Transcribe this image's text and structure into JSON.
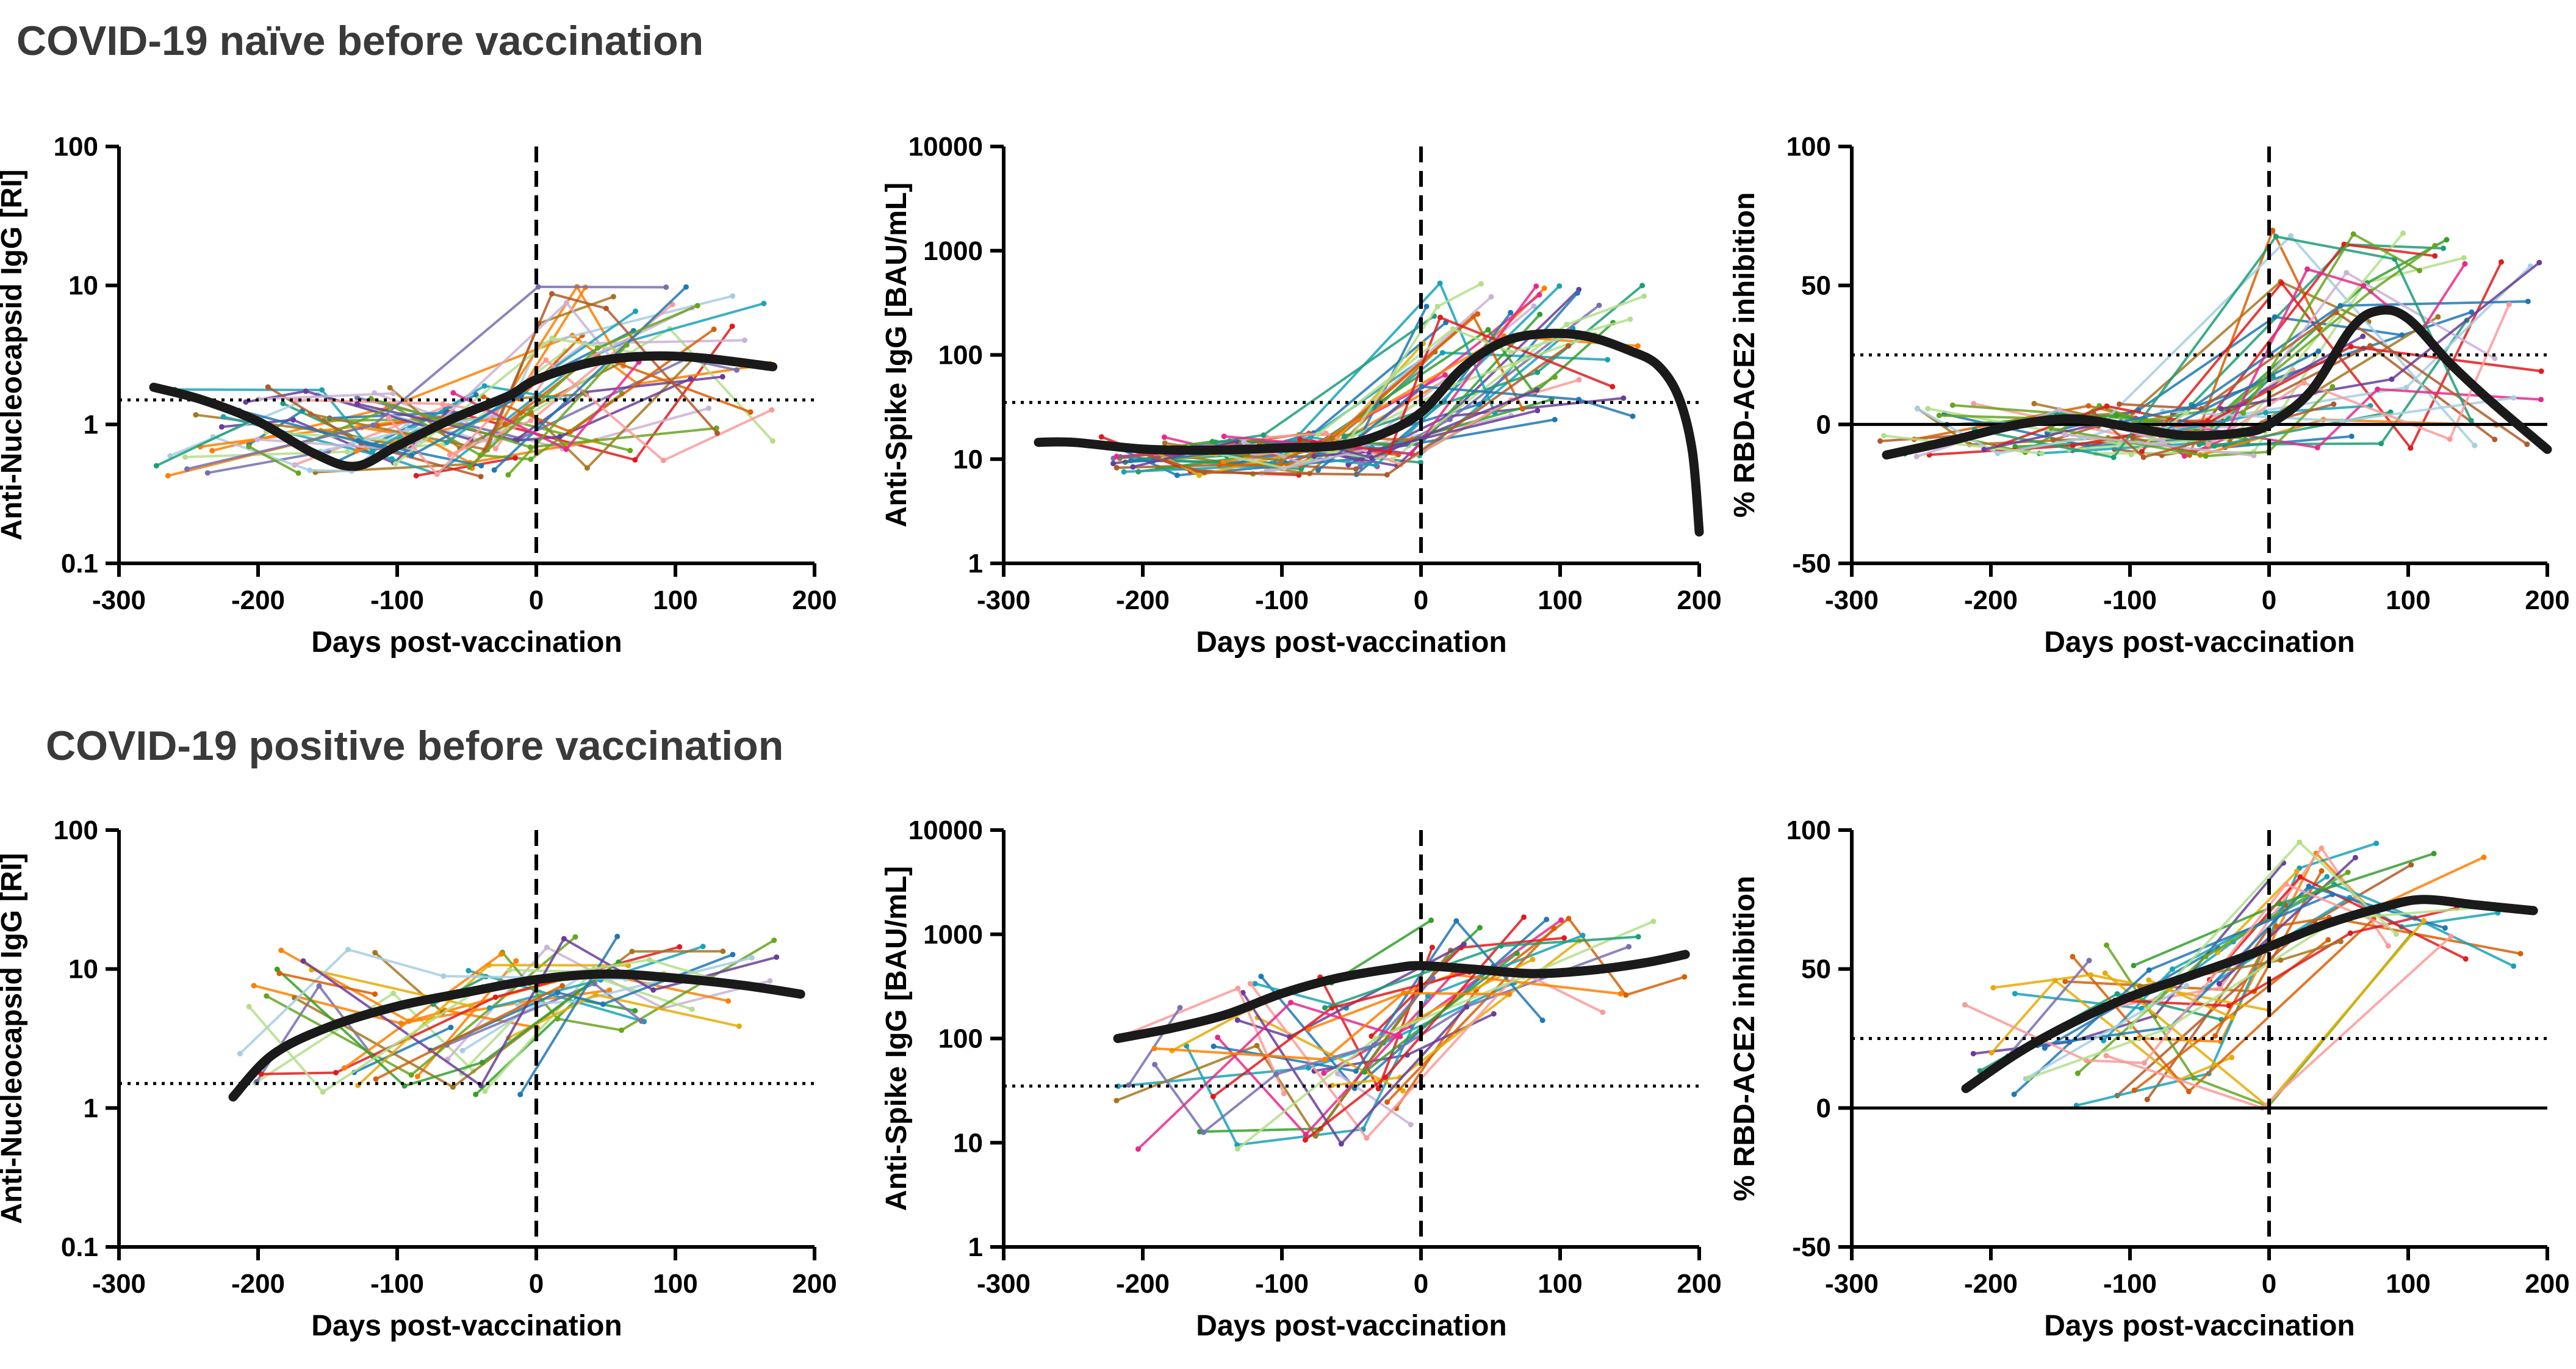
{
  "section_titles": {
    "top": "COVID-19 naïve before vaccination",
    "bottom": "COVID-19 positive before vaccination"
  },
  "colors": {
    "fit": "#1a1a1a",
    "participant_palette": [
      "#6a3d9a",
      "#1f78b4",
      "#33a02c",
      "#e31a1c",
      "#ff7f00",
      "#b15928",
      "#fb9a99",
      "#a6cee3",
      "#b2df8a",
      "#cab2d6",
      "#17a2b8",
      "#e7298a",
      "#66a61e",
      "#7570b3",
      "#d95f02",
      "#1b9e77",
      "#e6ab02",
      "#a6761d"
    ]
  },
  "chart_data": [
    {
      "id": "naive_nucleocapsid",
      "type": "line",
      "scale": "log",
      "ylabel": "Anti-Nucleocapsid IgG [RI]",
      "xlabel": "Days post-vaccination",
      "xlim": [
        -300,
        200
      ],
      "ylim": [
        0.1,
        100
      ],
      "xticks": [
        "-300",
        "-200",
        "-100",
        "0",
        "100",
        "200"
      ],
      "yticks": [
        {
          "v": 0.1,
          "label": "0.1"
        },
        {
          "v": 1,
          "label": "1"
        },
        {
          "v": 10,
          "label": "10"
        },
        {
          "v": 100,
          "label": "100"
        }
      ],
      "cutoff": 1.5,
      "baseline": null,
      "fit": [
        [
          -275,
          1.85
        ],
        [
          -240,
          1.5
        ],
        [
          -200,
          1.05
        ],
        [
          -160,
          0.62
        ],
        [
          -130,
          0.5
        ],
        [
          -100,
          0.7
        ],
        [
          -60,
          1.1
        ],
        [
          -20,
          1.6
        ],
        [
          0,
          2.1
        ],
        [
          40,
          2.8
        ],
        [
          80,
          3.1
        ],
        [
          120,
          3.0
        ],
        [
          170,
          2.6
        ]
      ],
      "series_seed": 11,
      "series_count": 60,
      "rand": {
        "pre_center": 0.9,
        "pre_spread": 0.55,
        "post_center": 2.2,
        "post_spread": 1.1,
        "xmin": -280,
        "xmax": 170,
        "cap_lo": 0.25,
        "cap_hi": 18
      }
    },
    {
      "id": "naive_spike",
      "type": "line",
      "scale": "log",
      "ylabel": "Anti-Spike IgG [BAU/mL]",
      "xlabel": "Days post-vaccination",
      "xlim": [
        -300,
        200
      ],
      "ylim": [
        1,
        10000
      ],
      "xticks": [
        "-300",
        "-200",
        "-100",
        "0",
        "100",
        "200"
      ],
      "yticks": [
        {
          "v": 1,
          "label": "1"
        },
        {
          "v": 10,
          "label": "10"
        },
        {
          "v": 100,
          "label": "100"
        },
        {
          "v": 1000,
          "label": "1000"
        },
        {
          "v": 10000,
          "label": "10000"
        }
      ],
      "cutoff": 35,
      "baseline": null,
      "fit": [
        [
          -275,
          14.5
        ],
        [
          -250,
          14.5
        ],
        [
          -200,
          12.5
        ],
        [
          -150,
          12.2
        ],
        [
          -100,
          12.8
        ],
        [
          -60,
          13.5
        ],
        [
          -30,
          17
        ],
        [
          0,
          28
        ],
        [
          30,
          75
        ],
        [
          60,
          135
        ],
        [
          90,
          160
        ],
        [
          120,
          150
        ],
        [
          150,
          110
        ],
        [
          170,
          80
        ],
        [
          185,
          40
        ],
        [
          195,
          12
        ],
        [
          200,
          2
        ]
      ],
      "series_seed": 23,
      "series_count": 60,
      "rand": {
        "pre_center": 11,
        "pre_spread": 0.35,
        "post_center": 120,
        "post_spread": 1.2,
        "xmin": -230,
        "xmax": 180,
        "cap_lo": 7,
        "cap_hi": 1000
      }
    },
    {
      "id": "naive_rbd",
      "type": "line",
      "scale": "linear",
      "ylabel": "% RBD-ACE2 inhibition",
      "xlabel": "Days post-vaccination",
      "xlim": [
        -300,
        200
      ],
      "ylim": [
        -50,
        100
      ],
      "xticks": [
        "-300",
        "-200",
        "-100",
        "0",
        "100",
        "200"
      ],
      "yticks": [
        {
          "v": -50,
          "label": "-50"
        },
        {
          "v": 0,
          "label": "0"
        },
        {
          "v": 50,
          "label": "50"
        },
        {
          "v": 100,
          "label": "100"
        }
      ],
      "cutoff": 25,
      "baseline": 0,
      "fit": [
        [
          -275,
          -11
        ],
        [
          -230,
          -6
        ],
        [
          -180,
          0
        ],
        [
          -140,
          2
        ],
        [
          -100,
          -1
        ],
        [
          -60,
          -4
        ],
        [
          -20,
          -3
        ],
        [
          0,
          0
        ],
        [
          30,
          12
        ],
        [
          60,
          35
        ],
        [
          80,
          41
        ],
        [
          100,
          38
        ],
        [
          130,
          22
        ],
        [
          160,
          8
        ],
        [
          200,
          -9
        ]
      ],
      "series_seed": 37,
      "series_count": 60,
      "rand": {
        "pre_center": -2,
        "pre_spread": 10,
        "post_center": 30,
        "post_spread": 40,
        "xmin": -280,
        "xmax": 200,
        "cap_lo": -20,
        "cap_hi": 98
      }
    },
    {
      "id": "positive_nucleocapsid",
      "type": "line",
      "scale": "log",
      "ylabel": "Anti-Nucleocapsid IgG [RI]",
      "xlabel": "Days post-vaccination",
      "xlim": [
        -300,
        200
      ],
      "ylim": [
        0.1,
        100
      ],
      "xticks": [
        "-300",
        "-200",
        "-100",
        "0",
        "100",
        "200"
      ],
      "yticks": [
        {
          "v": 0.1,
          "label": "0.1"
        },
        {
          "v": 1,
          "label": "1"
        },
        {
          "v": 10,
          "label": "10"
        },
        {
          "v": 100,
          "label": "100"
        }
      ],
      "cutoff": 1.5,
      "baseline": null,
      "fit": [
        [
          -218,
          1.2
        ],
        [
          -190,
          2.4
        ],
        [
          -150,
          3.8
        ],
        [
          -100,
          5.4
        ],
        [
          -50,
          6.8
        ],
        [
          0,
          8.4
        ],
        [
          50,
          9.2
        ],
        [
          100,
          8.6
        ],
        [
          150,
          7.6
        ],
        [
          190,
          6.6
        ]
      ],
      "series_seed": 53,
      "series_count": 35,
      "rand": {
        "pre_center": 4,
        "pre_spread": 0.9,
        "post_center": 8,
        "post_spread": 0.6,
        "xmin": -220,
        "xmax": 180,
        "cap_lo": 0.4,
        "cap_hi": 25
      }
    },
    {
      "id": "positive_spike",
      "type": "line",
      "scale": "log",
      "ylabel": "Anti-Spike IgG [BAU/mL]",
      "xlabel": "Days post-vaccination",
      "xlim": [
        -300,
        200
      ],
      "ylim": [
        1,
        10000
      ],
      "xticks": [
        "-300",
        "-200",
        "-100",
        "0",
        "100",
        "200"
      ],
      "yticks": [
        {
          "v": 1,
          "label": "1"
        },
        {
          "v": 10,
          "label": "10"
        },
        {
          "v": 100,
          "label": "100"
        },
        {
          "v": 1000,
          "label": "1000"
        },
        {
          "v": 10000,
          "label": "10000"
        }
      ],
      "cutoff": 35,
      "baseline": null,
      "fit": [
        [
          -218,
          100
        ],
        [
          -180,
          125
        ],
        [
          -140,
          170
        ],
        [
          -100,
          270
        ],
        [
          -60,
          380
        ],
        [
          -20,
          470
        ],
        [
          0,
          500
        ],
        [
          40,
          460
        ],
        [
          80,
          420
        ],
        [
          120,
          450
        ],
        [
          160,
          530
        ],
        [
          190,
          640
        ]
      ],
      "series_seed": 71,
      "series_count": 35,
      "rand": {
        "pre_center": 60,
        "pre_spread": 1.4,
        "post_center": 450,
        "post_spread": 0.9,
        "xmin": -220,
        "xmax": 190,
        "cap_lo": 8,
        "cap_hi": 2000
      }
    },
    {
      "id": "positive_rbd",
      "type": "line",
      "scale": "linear",
      "ylabel": "% RBD-ACE2 inhibition",
      "xlabel": "Days post-vaccination",
      "xlim": [
        -300,
        200
      ],
      "ylim": [
        -50,
        100
      ],
      "xticks": [
        "-300",
        "-200",
        "-100",
        "0",
        "100",
        "200"
      ],
      "yticks": [
        {
          "v": -50,
          "label": "-50"
        },
        {
          "v": 0,
          "label": "0"
        },
        {
          "v": 50,
          "label": "50"
        },
        {
          "v": 100,
          "label": "100"
        }
      ],
      "cutoff": 25,
      "baseline": 0,
      "fit": [
        [
          -218,
          7
        ],
        [
          -180,
          20
        ],
        [
          -140,
          31
        ],
        [
          -100,
          40
        ],
        [
          -60,
          47
        ],
        [
          -20,
          54
        ],
        [
          0,
          58
        ],
        [
          40,
          66
        ],
        [
          80,
          72
        ],
        [
          110,
          75
        ],
        [
          150,
          73
        ],
        [
          190,
          71
        ]
      ],
      "series_seed": 89,
      "series_count": 35,
      "rand": {
        "pre_center": 30,
        "pre_spread": 30,
        "post_center": 75,
        "post_spread": 25,
        "xmin": -220,
        "xmax": 190,
        "cap_lo": -5,
        "cap_hi": 98
      }
    }
  ]
}
